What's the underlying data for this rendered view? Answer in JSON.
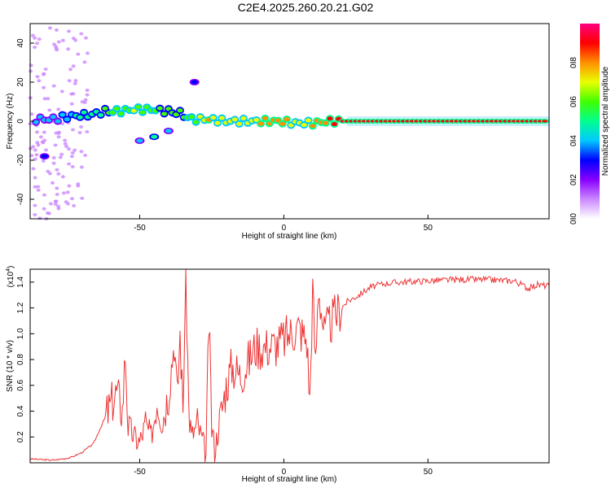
{
  "title": "C2E4.2025.260.20.21.G02",
  "chart_data": [
    {
      "type": "heatmap",
      "panel": "spectrogram",
      "xlabel": "Height of straight line (km)",
      "ylabel": "Frequency (Hz)",
      "xlim": [
        -88,
        92
      ],
      "ylim": [
        -50,
        50
      ],
      "xticks": [
        -50,
        0,
        50
      ],
      "xtick_labels": [
        "-50",
        "0",
        "50"
      ],
      "yticks": [
        -40,
        -20,
        0,
        20,
        40
      ],
      "ytick_labels": [
        "-40",
        "-20",
        "0",
        "20",
        "40"
      ],
      "colorbar": {
        "label": "Normalized spectral amplitude",
        "range": [
          0,
          1
        ],
        "ticks": [
          0.0,
          0.2,
          0.4,
          0.6,
          0.8
        ],
        "tick_labels": [
          "0.0",
          "0.2",
          "0.4",
          "0.6",
          "0.8"
        ],
        "colors": [
          "#ffffff",
          "#cc88ff",
          "#8800ff",
          "#0000ff",
          "#00c8ff",
          "#00ff90",
          "#40ff00",
          "#e8ff00",
          "#ff9000",
          "#ff0000",
          "#ff0080"
        ]
      },
      "ridge": [
        {
          "x": -86,
          "freq": 1,
          "amp": 0.35
        },
        {
          "x": -80,
          "freq": 1,
          "amp": 0.4
        },
        {
          "x": -72,
          "freq": 3,
          "amp": 0.45
        },
        {
          "x": -68,
          "freq": 3,
          "amp": 0.5
        },
        {
          "x": -62,
          "freq": 5,
          "amp": 0.55
        },
        {
          "x": -58,
          "freq": 5,
          "amp": 0.6
        },
        {
          "x": -52,
          "freq": 6,
          "amp": 0.65
        },
        {
          "x": -46,
          "freq": 6,
          "amp": 0.6
        },
        {
          "x": -40,
          "freq": 5,
          "amp": 0.55
        },
        {
          "x": -36,
          "freq": 4,
          "amp": 0.55
        },
        {
          "x": -32,
          "freq": 1,
          "amp": 0.6
        },
        {
          "x": -26,
          "freq": 1,
          "amp": 0.75
        },
        {
          "x": -20,
          "freq": 0,
          "amp": 0.7
        },
        {
          "x": -14,
          "freq": 0,
          "amp": 0.7
        },
        {
          "x": -8,
          "freq": 0,
          "amp": 0.75
        },
        {
          "x": -2,
          "freq": 0,
          "amp": 0.8
        },
        {
          "x": 4,
          "freq": -1,
          "amp": 0.7
        },
        {
          "x": 10,
          "freq": -1,
          "amp": 0.75
        },
        {
          "x": 16,
          "freq": 0,
          "amp": 0.85
        },
        {
          "x": 22,
          "freq": 0,
          "amp": 0.9
        },
        {
          "x": 40,
          "freq": 0,
          "amp": 0.9
        },
        {
          "x": 60,
          "freq": 0,
          "amp": 0.9
        },
        {
          "x": 80,
          "freq": 0,
          "amp": 0.9
        },
        {
          "x": 92,
          "freq": 0,
          "amp": 0.9
        }
      ],
      "side_branch": [
        {
          "x": -50,
          "freq": -10,
          "amp": 0.4
        },
        {
          "x": -45,
          "freq": -8,
          "amp": 0.45
        },
        {
          "x": -40,
          "freq": -5,
          "amp": 0.35
        },
        {
          "x": -31,
          "freq": 20,
          "amp": 0.3
        },
        {
          "x": -83,
          "freq": -18,
          "amp": 0.3
        }
      ]
    },
    {
      "type": "line",
      "panel": "snr",
      "xlabel": "Height of straight line (km)",
      "ylabel": "SNR (10 * v/v)",
      "y_multiplier": "(x10",
      "y_multiplier_exp": "4",
      "y_multiplier_close": ")",
      "xlim": [
        -88,
        92
      ],
      "ylim": [
        0,
        1.5
      ],
      "xticks": [
        -50,
        0,
        50
      ],
      "xtick_labels": [
        "-50",
        "0",
        "50"
      ],
      "yticks": [
        0.2,
        0.4,
        0.6,
        0.8,
        1.0,
        1.2,
        1.4
      ],
      "ytick_labels": [
        "0.2",
        "0.4",
        "0.6",
        "0.8",
        "1.0",
        "1.2",
        "1.4"
      ],
      "color": "#ee3333",
      "x": [
        -88,
        -80,
        -74,
        -70,
        -66,
        -63,
        -60,
        -58,
        -56,
        -55,
        -54,
        -52,
        -50,
        -48,
        -46,
        -44,
        -42,
        -40,
        -38,
        -37,
        -36,
        -35,
        -34,
        -33,
        -32,
        -30,
        -28,
        -27,
        -26,
        -25,
        -24,
        -22,
        -20,
        -18,
        -15,
        -12,
        -10,
        -6,
        -2,
        2,
        5,
        8,
        9,
        10,
        11,
        12,
        14,
        18,
        22,
        26,
        30,
        35,
        40,
        50,
        60,
        70,
        80,
        85,
        88,
        92
      ],
      "y": [
        0.03,
        0.02,
        0.04,
        0.08,
        0.15,
        0.3,
        0.45,
        0.55,
        0.4,
        0.86,
        0.3,
        0.2,
        0.16,
        0.3,
        0.2,
        0.5,
        0.35,
        0.55,
        0.96,
        0.5,
        1.0,
        0.4,
        1.48,
        0.45,
        0.2,
        0.3,
        0.15,
        0.05,
        1.1,
        0.3,
        0.1,
        0.35,
        0.6,
        0.75,
        0.68,
        0.8,
        0.9,
        0.9,
        0.92,
        1.0,
        1.05,
        0.95,
        0.48,
        1.35,
        0.75,
        1.38,
        1.0,
        1.15,
        1.25,
        1.3,
        1.36,
        1.39,
        1.4,
        1.41,
        1.42,
        1.42,
        1.41,
        1.35,
        1.38,
        1.37
      ]
    }
  ]
}
